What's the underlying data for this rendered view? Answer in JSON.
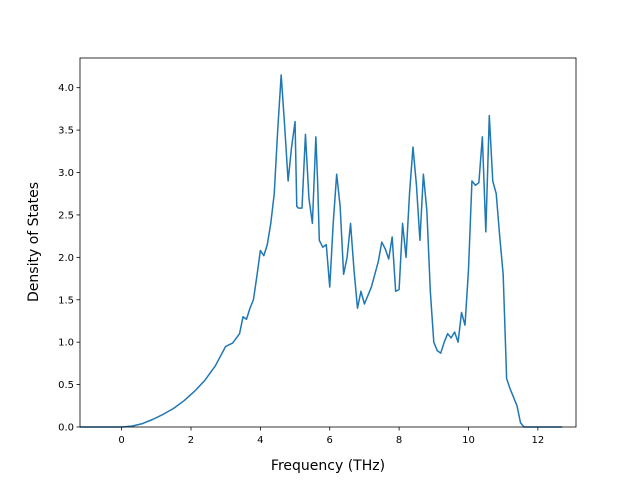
{
  "chart_data": {
    "type": "line",
    "title": "",
    "xlabel": "Frequency (THz)",
    "ylabel": "Density of States",
    "xlim": [
      -1.2,
      13.1
    ],
    "ylim": [
      0,
      4.35
    ],
    "xticks": [
      0,
      2,
      4,
      6,
      8,
      10,
      12
    ],
    "yticks": [
      0.0,
      0.5,
      1.0,
      1.5,
      2.0,
      2.5,
      3.0,
      3.5,
      4.0
    ],
    "xtick_labels": [
      "0",
      "2",
      "4",
      "6",
      "8",
      "10",
      "12"
    ],
    "ytick_labels": [
      "0.0",
      "0.5",
      "1.0",
      "1.5",
      "2.0",
      "2.5",
      "3.0",
      "3.5",
      "4.0"
    ],
    "grid": false,
    "line_color": "#1f77b4",
    "series": [
      {
        "x": [
          -1.2,
          0.0,
          0.3,
          0.6,
          0.9,
          1.2,
          1.5,
          1.8,
          2.1,
          2.4,
          2.7,
          3.0,
          3.2,
          3.4,
          3.5,
          3.6,
          3.7,
          3.8,
          3.9,
          4.0,
          4.1,
          4.2,
          4.3,
          4.4,
          4.5,
          4.6,
          4.7,
          4.8,
          4.9,
          5.0,
          5.05,
          5.1,
          5.2,
          5.3,
          5.4,
          5.5,
          5.6,
          5.65,
          5.7,
          5.8,
          5.9,
          6.0,
          6.1,
          6.2,
          6.3,
          6.4,
          6.5,
          6.6,
          6.7,
          6.8,
          6.9,
          7.0,
          7.1,
          7.2,
          7.3,
          7.4,
          7.5,
          7.6,
          7.7,
          7.8,
          7.9,
          8.0,
          8.1,
          8.2,
          8.3,
          8.4,
          8.5,
          8.6,
          8.7,
          8.8,
          8.9,
          9.0,
          9.1,
          9.2,
          9.3,
          9.4,
          9.5,
          9.6,
          9.7,
          9.8,
          9.9,
          10.0,
          10.1,
          10.2,
          10.3,
          10.4,
          10.5,
          10.6,
          10.7,
          10.8,
          10.9,
          11.0,
          11.1,
          11.2,
          11.3,
          11.4,
          11.5,
          11.6,
          11.8,
          12.0,
          12.2,
          12.7
        ],
        "y": [
          0.0,
          0.0,
          0.01,
          0.04,
          0.09,
          0.15,
          0.22,
          0.31,
          0.42,
          0.55,
          0.72,
          0.95,
          0.99,
          1.1,
          1.3,
          1.27,
          1.4,
          1.5,
          1.78,
          2.08,
          2.02,
          2.15,
          2.4,
          2.75,
          3.5,
          4.15,
          3.55,
          2.9,
          3.3,
          3.6,
          2.6,
          2.58,
          2.58,
          3.45,
          2.7,
          2.4,
          3.42,
          2.9,
          2.2,
          2.12,
          2.15,
          1.65,
          2.4,
          2.98,
          2.6,
          1.8,
          2.0,
          2.4,
          1.85,
          1.4,
          1.6,
          1.45,
          1.55,
          1.65,
          1.8,
          1.95,
          2.18,
          2.1,
          1.98,
          2.24,
          1.6,
          1.62,
          2.4,
          2.0,
          2.75,
          3.3,
          2.85,
          2.2,
          2.98,
          2.55,
          1.6,
          1.0,
          0.9,
          0.87,
          1.0,
          1.1,
          1.05,
          1.12,
          1.0,
          1.35,
          1.2,
          1.85,
          2.9,
          2.85,
          2.88,
          3.42,
          2.3,
          3.67,
          2.9,
          2.75,
          2.25,
          1.8,
          0.57,
          0.45,
          0.35,
          0.25,
          0.05,
          0.0,
          0.0,
          0.0,
          0.0,
          0.0
        ]
      }
    ]
  }
}
